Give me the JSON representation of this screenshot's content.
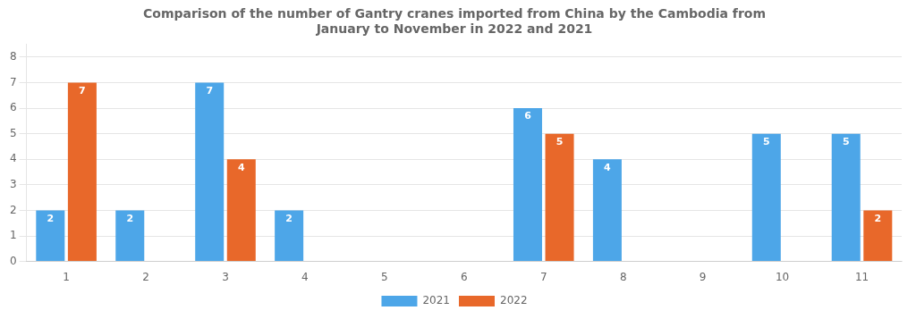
{
  "chart_data": {
    "type": "bar",
    "title": "Comparison of the number of Gantry cranes imported from China by the Cambodia from\nJanuary to November in 2022 and 2021",
    "categories": [
      "1",
      "2",
      "3",
      "4",
      "5",
      "6",
      "7",
      "8",
      "9",
      "10",
      "11"
    ],
    "series": [
      {
        "name": "2021",
        "color": "#4da6e8",
        "values": [
          2,
          2,
          7,
          2,
          0,
          0,
          6,
          4,
          0,
          5,
          5
        ]
      },
      {
        "name": "2022",
        "color": "#e8682a",
        "values": [
          7,
          0,
          4,
          0,
          0,
          0,
          5,
          0,
          0,
          0,
          2
        ]
      }
    ],
    "ylim": [
      0,
      8.5
    ],
    "yticks": [
      0,
      1,
      2,
      3,
      4,
      5,
      6,
      7,
      8
    ],
    "grid": true,
    "legend": "bottom",
    "data_labels": true
  }
}
